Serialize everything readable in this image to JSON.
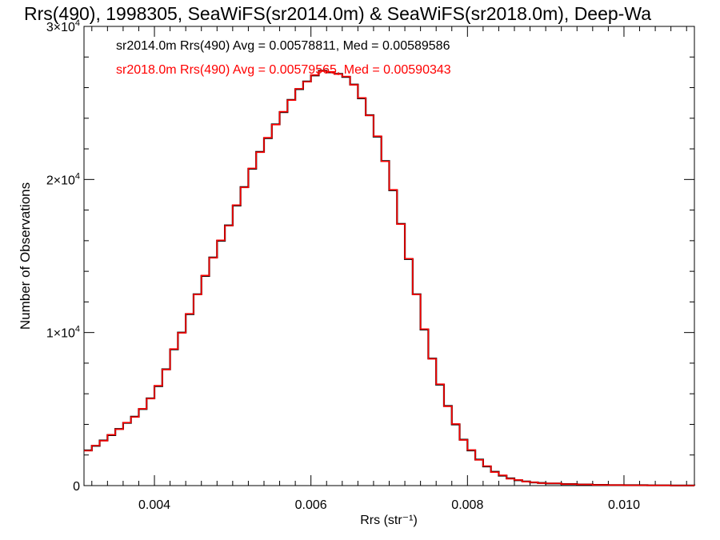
{
  "chart_data": {
    "type": "line",
    "step": true,
    "title": "Rrs(490), 1998305, SeaWiFS(sr2014.0m) & SeaWiFS(sr2018.0m), Deep-Wa",
    "xlabel": "Rrs (str⁻¹)",
    "ylabel": "Number of Observations",
    "xlim": [
      0.0031,
      0.0109
    ],
    "ylim": [
      0,
      30000
    ],
    "x_ticks": [
      {
        "value": 0.004,
        "label": "0.004"
      },
      {
        "value": 0.006,
        "label": "0.006"
      },
      {
        "value": 0.008,
        "label": "0.008"
      },
      {
        "value": 0.01,
        "label": "0.010"
      }
    ],
    "y_ticks": [
      {
        "value": 0,
        "mantissa": "0",
        "exponent": ""
      },
      {
        "value": 10000,
        "mantissa": "1×10",
        "exponent": "4"
      },
      {
        "value": 20000,
        "mantissa": "2×10",
        "exponent": "4"
      },
      {
        "value": 30000,
        "mantissa": "3×10",
        "exponent": "4"
      }
    ],
    "grid": false,
    "legend": [
      {
        "text": "sr2014.0m Rrs(490) Avg = 0.00578811, Med = 0.00589586",
        "color": "#000000"
      },
      {
        "text": "sr2018.0m Rrs(490) Avg = 0.00579565, Med = 0.00590343",
        "color": "#ff0000"
      }
    ],
    "series": [
      {
        "color": "#000000",
        "points": [
          [
            0.0031,
            2300
          ],
          [
            0.0032,
            2600
          ],
          [
            0.0033,
            2950
          ],
          [
            0.0034,
            3300
          ],
          [
            0.0035,
            3700
          ],
          [
            0.0036,
            4100
          ],
          [
            0.0037,
            4500
          ],
          [
            0.0038,
            5000
          ],
          [
            0.0039,
            5700
          ],
          [
            0.004,
            6500
          ],
          [
            0.0041,
            7600
          ],
          [
            0.0042,
            8900
          ],
          [
            0.0043,
            10000
          ],
          [
            0.0044,
            11200
          ],
          [
            0.0045,
            12500
          ],
          [
            0.0046,
            13700
          ],
          [
            0.0047,
            14900
          ],
          [
            0.0048,
            16000
          ],
          [
            0.0049,
            17000
          ],
          [
            0.005,
            18300
          ],
          [
            0.0051,
            19500
          ],
          [
            0.0052,
            20700
          ],
          [
            0.0053,
            21800
          ],
          [
            0.0054,
            22700
          ],
          [
            0.0055,
            23600
          ],
          [
            0.0056,
            24400
          ],
          [
            0.0057,
            25200
          ],
          [
            0.0058,
            25900
          ],
          [
            0.0059,
            26400
          ],
          [
            0.006,
            26800
          ],
          [
            0.0061,
            27100
          ],
          [
            0.0062,
            27000
          ],
          [
            0.0063,
            26900
          ],
          [
            0.0064,
            26700
          ],
          [
            0.0065,
            26200
          ],
          [
            0.0066,
            25300
          ],
          [
            0.0067,
            24200
          ],
          [
            0.0068,
            22800
          ],
          [
            0.0069,
            21200
          ],
          [
            0.007,
            19300
          ],
          [
            0.0071,
            17100
          ],
          [
            0.0072,
            14800
          ],
          [
            0.0073,
            12500
          ],
          [
            0.0074,
            10200
          ],
          [
            0.0075,
            8300
          ],
          [
            0.0076,
            6600
          ],
          [
            0.0077,
            5200
          ],
          [
            0.0078,
            4000
          ],
          [
            0.0079,
            3000
          ],
          [
            0.008,
            2300
          ],
          [
            0.0081,
            1700
          ],
          [
            0.0082,
            1250
          ],
          [
            0.0083,
            900
          ],
          [
            0.0084,
            650
          ],
          [
            0.0085,
            470
          ],
          [
            0.0086,
            350
          ],
          [
            0.0087,
            270
          ],
          [
            0.0088,
            210
          ],
          [
            0.0089,
            170
          ],
          [
            0.009,
            140
          ],
          [
            0.0092,
            100
          ],
          [
            0.0094,
            70
          ],
          [
            0.0096,
            50
          ],
          [
            0.0098,
            35
          ],
          [
            0.01,
            25
          ],
          [
            0.0103,
            15
          ],
          [
            0.0106,
            8
          ],
          [
            0.0109,
            4
          ]
        ]
      },
      {
        "color": "#ff0000",
        "points": [
          [
            0.0031,
            2280
          ],
          [
            0.0032,
            2620
          ],
          [
            0.0033,
            2930
          ],
          [
            0.0034,
            3320
          ],
          [
            0.0035,
            3680
          ],
          [
            0.0036,
            4120
          ],
          [
            0.0037,
            4480
          ],
          [
            0.0038,
            5020
          ],
          [
            0.0039,
            5680
          ],
          [
            0.004,
            6530
          ],
          [
            0.0041,
            7580
          ],
          [
            0.0042,
            8930
          ],
          [
            0.0043,
            9980
          ],
          [
            0.0044,
            11230
          ],
          [
            0.0045,
            12480
          ],
          [
            0.0046,
            13730
          ],
          [
            0.0047,
            14880
          ],
          [
            0.0048,
            16030
          ],
          [
            0.0049,
            16980
          ],
          [
            0.005,
            18330
          ],
          [
            0.0051,
            19480
          ],
          [
            0.0052,
            20730
          ],
          [
            0.0053,
            21780
          ],
          [
            0.0054,
            22730
          ],
          [
            0.0055,
            23580
          ],
          [
            0.0056,
            24430
          ],
          [
            0.0057,
            25180
          ],
          [
            0.0058,
            25930
          ],
          [
            0.0059,
            26380
          ],
          [
            0.006,
            26830
          ],
          [
            0.0061,
            27080
          ],
          [
            0.0062,
            27030
          ],
          [
            0.0063,
            26880
          ],
          [
            0.0064,
            26730
          ],
          [
            0.0065,
            26180
          ],
          [
            0.0066,
            25330
          ],
          [
            0.0067,
            24180
          ],
          [
            0.0068,
            22830
          ],
          [
            0.0069,
            21180
          ],
          [
            0.007,
            19330
          ],
          [
            0.0071,
            17080
          ],
          [
            0.0072,
            14830
          ],
          [
            0.0073,
            12480
          ],
          [
            0.0074,
            10230
          ],
          [
            0.0075,
            8280
          ],
          [
            0.0076,
            6630
          ],
          [
            0.0077,
            5180
          ],
          [
            0.0078,
            4030
          ],
          [
            0.0079,
            2980
          ],
          [
            0.008,
            2330
          ],
          [
            0.0081,
            1680
          ],
          [
            0.0082,
            1280
          ],
          [
            0.0083,
            880
          ],
          [
            0.0084,
            680
          ],
          [
            0.0085,
            450
          ],
          [
            0.0086,
            370
          ],
          [
            0.0087,
            260
          ],
          [
            0.0088,
            220
          ],
          [
            0.0089,
            160
          ],
          [
            0.009,
            150
          ],
          [
            0.0092,
            95
          ],
          [
            0.0094,
            75
          ],
          [
            0.0096,
            45
          ],
          [
            0.0098,
            38
          ],
          [
            0.01,
            22
          ],
          [
            0.0103,
            17
          ],
          [
            0.0106,
            7
          ],
          [
            0.0109,
            5
          ]
        ]
      }
    ]
  }
}
